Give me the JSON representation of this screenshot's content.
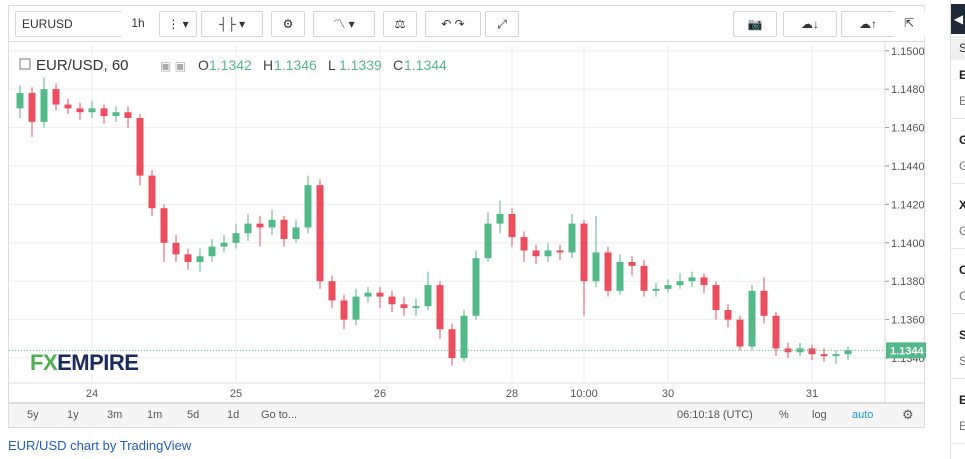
{
  "toolbar": {
    "symbol": "EURUSD",
    "interval": "1h"
  },
  "chart_data": {
    "type": "candlestick",
    "title": "EUR/USD, 60",
    "ohlc_legend": [
      {
        "label": "O",
        "value": 1.1342
      },
      {
        "label": "H",
        "value": 1.1346
      },
      {
        "label": "L",
        "value": 1.1339
      },
      {
        "label": "C",
        "value": 1.1344
      }
    ],
    "last_price": 1.1344,
    "watermark": {
      "part1": "FX",
      "part2": "EMPIRE"
    },
    "up_color": "#53b987",
    "down_color": "#eb4d5c",
    "grid": true,
    "categories": [
      null,
      null,
      null,
      null,
      null,
      null,
      "24",
      null,
      null,
      null,
      null,
      null,
      null,
      null,
      null,
      null,
      null,
      null,
      "25",
      null,
      null,
      null,
      null,
      null,
      null,
      null,
      null,
      null,
      null,
      null,
      "26",
      null,
      null,
      null,
      null,
      null,
      null,
      null,
      null,
      null,
      null,
      "28",
      null,
      null,
      null,
      null,
      null,
      "10:00",
      null,
      null,
      null,
      null,
      null,
      null,
      "30",
      null,
      null,
      null,
      null,
      null,
      null,
      null,
      null,
      null,
      null,
      null,
      "31",
      null,
      null,
      null
    ],
    "open": [
      1.147,
      1.1478,
      1.1463,
      1.148,
      1.1472,
      1.147,
      1.1468,
      1.147,
      1.1466,
      1.1468,
      1.1465,
      1.1435,
      1.1418,
      1.14,
      1.1394,
      1.139,
      1.1393,
      1.1398,
      1.14,
      1.1405,
      1.141,
      1.1408,
      1.1412,
      1.1402,
      1.1408,
      1.143,
      1.138,
      1.137,
      1.136,
      1.1372,
      1.1374,
      1.1372,
      1.1368,
      1.1366,
      1.1367,
      1.1378,
      1.1355,
      1.134,
      1.1362,
      1.1392,
      1.141,
      1.1415,
      1.1403,
      1.1396,
      1.1393,
      1.1396,
      1.1395,
      1.141,
      1.138,
      1.1395,
      1.1375,
      1.139,
      1.1388,
      1.1375,
      1.1376,
      1.1378,
      1.138,
      1.1382,
      1.1378,
      1.1365,
      1.136,
      1.1346,
      1.1375,
      1.1362,
      1.1345,
      1.1343,
      1.1345,
      1.1342,
      1.1341,
      1.1342
    ],
    "high": [
      1.1482,
      1.1481,
      1.1486,
      1.1483,
      1.1475,
      1.1473,
      1.1474,
      1.1472,
      1.1471,
      1.1471,
      1.1467,
      1.1438,
      1.142,
      1.1404,
      1.1397,
      1.1397,
      1.1402,
      1.1404,
      1.141,
      1.1415,
      1.1414,
      1.1417,
      1.1414,
      1.1412,
      1.1435,
      1.1433,
      1.1383,
      1.1373,
      1.1376,
      1.1377,
      1.1377,
      1.1375,
      1.1372,
      1.1371,
      1.1385,
      1.138,
      1.1358,
      1.1365,
      1.1396,
      1.1416,
      1.1422,
      1.1418,
      1.1406,
      1.1399,
      1.14,
      1.1399,
      1.1415,
      1.1412,
      1.1414,
      1.1398,
      1.1394,
      1.1393,
      1.1391,
      1.1379,
      1.1381,
      1.1384,
      1.1385,
      1.1384,
      1.138,
      1.1368,
      1.1362,
      1.1378,
      1.1382,
      1.1364,
      1.1348,
      1.1348,
      1.1347,
      1.1345,
      1.1344,
      1.1346
    ],
    "low": [
      1.1465,
      1.1455,
      1.146,
      1.1469,
      1.1467,
      1.1464,
      1.1465,
      1.1462,
      1.1463,
      1.146,
      1.143,
      1.1414,
      1.139,
      1.139,
      1.1386,
      1.1385,
      1.139,
      1.1395,
      1.1397,
      1.1401,
      1.1398,
      1.1404,
      1.1398,
      1.14,
      1.1405,
      1.1376,
      1.1366,
      1.1355,
      1.1357,
      1.1369,
      1.1366,
      1.1364,
      1.1362,
      1.1362,
      1.1365,
      1.135,
      1.1336,
      1.1338,
      1.136,
      1.139,
      1.1405,
      1.1398,
      1.139,
      1.1389,
      1.139,
      1.1391,
      1.1392,
      1.1362,
      1.1377,
      1.1372,
      1.1373,
      1.1383,
      1.1372,
      1.1372,
      1.1374,
      1.1376,
      1.1377,
      1.1374,
      1.136,
      1.1356,
      1.1344,
      1.1344,
      1.1358,
      1.1341,
      1.134,
      1.1341,
      1.1339,
      1.1338,
      1.1337,
      1.1339
    ],
    "close": [
      1.1478,
      1.1463,
      1.148,
      1.1472,
      1.147,
      1.1468,
      1.147,
      1.1466,
      1.1468,
      1.1465,
      1.1435,
      1.1418,
      1.14,
      1.1394,
      1.139,
      1.1393,
      1.1398,
      1.14,
      1.1405,
      1.141,
      1.1408,
      1.1412,
      1.1402,
      1.1408,
      1.143,
      1.138,
      1.137,
      1.136,
      1.1372,
      1.1374,
      1.1372,
      1.1368,
      1.1366,
      1.1367,
      1.1378,
      1.1355,
      1.134,
      1.1362,
      1.1392,
      1.141,
      1.1415,
      1.1403,
      1.1396,
      1.1393,
      1.1396,
      1.1395,
      1.141,
      1.138,
      1.1395,
      1.1375,
      1.139,
      1.1388,
      1.1375,
      1.1376,
      1.1378,
      1.138,
      1.1382,
      1.1378,
      1.1365,
      1.136,
      1.1346,
      1.1375,
      1.1362,
      1.1345,
      1.1343,
      1.1345,
      1.1342,
      1.1341,
      1.1342,
      1.1344
    ],
    "ylim": [
      1.1327,
      1.1503
    ],
    "yticks": [
      {
        "value": 1.134,
        "label": "1.1340"
      },
      {
        "value": 1.136,
        "label": "1.1360"
      },
      {
        "value": 1.138,
        "label": "1.1380"
      },
      {
        "value": 1.14,
        "label": "1.1400"
      },
      {
        "value": 1.142,
        "label": "1.1420"
      },
      {
        "value": 1.144,
        "label": "1.1440"
      },
      {
        "value": 1.146,
        "label": "1.1460"
      },
      {
        "value": 1.148,
        "label": "1.1480"
      },
      {
        "value": 1.15,
        "label": "1.1500"
      }
    ]
  },
  "bottom_bar": {
    "ranges": [
      "5y",
      "1y",
      "3m",
      "1m",
      "5d",
      "1d"
    ],
    "goto": "Go to...",
    "clock": "06:10:18 (UTC)",
    "percent": "%",
    "log": "log",
    "auto": "auto"
  },
  "footer": "EUR/USD chart by TradingView",
  "sidebar": {
    "header": "S",
    "items": [
      {
        "title": "E",
        "sub": "E"
      },
      {
        "title": "G",
        "sub": "G"
      },
      {
        "title": "X",
        "sub": "G"
      },
      {
        "title": "C",
        "sub": "C"
      },
      {
        "title": "S",
        "sub": "S"
      },
      {
        "title": "E",
        "sub": "E"
      }
    ]
  }
}
